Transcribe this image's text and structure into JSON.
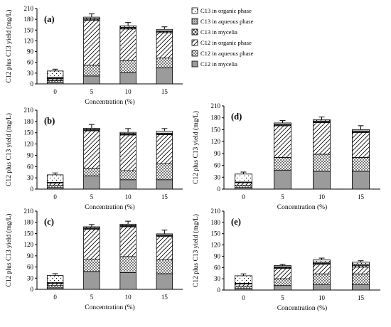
{
  "figure": {
    "legend": [
      {
        "key": "c13_organic",
        "label": "C13 in organic phase"
      },
      {
        "key": "c13_aqueous",
        "label": "C13 in aqueous phase"
      },
      {
        "key": "c13_mycelia",
        "label": "C13 in mycelia"
      },
      {
        "key": "c12_organic",
        "label": "C12 in organic phase"
      },
      {
        "key": "c12_aqueous",
        "label": "C12 in aqueous phase"
      },
      {
        "key": "c12_mycelia",
        "label": "C12 in mycelia"
      }
    ]
  },
  "chart_data": [
    {
      "type": "bar",
      "panel": "(a)",
      "xlabel": "Concentration (%)",
      "ylabel": "C12 plus C13 yield (mg/L)",
      "ylim": [
        0,
        210
      ],
      "yticks": [
        0,
        30,
        60,
        90,
        120,
        150,
        180,
        210
      ],
      "categories": [
        "0",
        "5",
        "10",
        "15"
      ],
      "stacked": true,
      "series": [
        {
          "name": "C12 in mycelia",
          "values": [
            5,
            22,
            32,
            45
          ]
        },
        {
          "name": "C12 in aqueous phase",
          "values": [
            4,
            30,
            33,
            27
          ]
        },
        {
          "name": "C12 in organic phase",
          "values": [
            5,
            125,
            88,
            71
          ]
        },
        {
          "name": "C13 in mycelia",
          "values": [
            2,
            3,
            3,
            3
          ]
        },
        {
          "name": "C13 in aqueous phase",
          "values": [
            2,
            2,
            2,
            2
          ]
        },
        {
          "name": "C13 in organic phase",
          "values": [
            18,
            4,
            4,
            4
          ]
        }
      ],
      "error": [
        5,
        9,
        9,
        7
      ]
    },
    {
      "type": "bar",
      "panel": "(b)",
      "xlabel": "Concentration (%)",
      "ylabel": "C12 plus C13 yield (mg/L)",
      "ylim": [
        0,
        210
      ],
      "yticks": [
        0,
        30,
        60,
        90,
        120,
        150,
        180,
        210
      ],
      "categories": [
        "0",
        "5",
        "10",
        "15"
      ],
      "stacked": true,
      "series": [
        {
          "name": "C12 in mycelia",
          "values": [
            4,
            35,
            25,
            25
          ]
        },
        {
          "name": "C12 in aqueous phase",
          "values": [
            6,
            20,
            24,
            42
          ]
        },
        {
          "name": "C12 in organic phase",
          "values": [
            6,
            100,
            95,
            78
          ]
        },
        {
          "name": "C13 in mycelia",
          "values": [
            1,
            2,
            2,
            2
          ]
        },
        {
          "name": "C13 in aqueous phase",
          "values": [
            1,
            2,
            2,
            2
          ]
        },
        {
          "name": "C13 in organic phase",
          "values": [
            20,
            3,
            3,
            5
          ]
        }
      ],
      "error": [
        5,
        10,
        10,
        7
      ]
    },
    {
      "type": "bar",
      "panel": "(c)",
      "xlabel": "Concentration (%)",
      "ylabel": "C12 plus C13 yield (mg/L)",
      "ylim": [
        0,
        210
      ],
      "yticks": [
        0,
        30,
        60,
        90,
        120,
        150,
        180,
        210
      ],
      "categories": [
        "0",
        "5",
        "10",
        "15"
      ],
      "stacked": true,
      "series": [
        {
          "name": "C12 in mycelia",
          "values": [
            4,
            48,
            45,
            42
          ]
        },
        {
          "name": "C12 in aqueous phase",
          "values": [
            6,
            33,
            43,
            37
          ]
        },
        {
          "name": "C12 in organic phase",
          "values": [
            6,
            80,
            80,
            63
          ]
        },
        {
          "name": "C13 in mycelia",
          "values": [
            1,
            2,
            2,
            2
          ]
        },
        {
          "name": "C13 in aqueous phase",
          "values": [
            1,
            2,
            2,
            2
          ]
        },
        {
          "name": "C13 in organic phase",
          "values": [
            19,
            3,
            3,
            3
          ]
        }
      ],
      "error": [
        5,
        6,
        8,
        10
      ]
    },
    {
      "type": "bar",
      "panel": "(d)",
      "xlabel": "Concentration (%)",
      "ylabel": "C12 plus C13 yield (mg/L)",
      "ylim": [
        0,
        210
      ],
      "yticks": [
        0,
        30,
        60,
        90,
        120,
        150,
        180,
        210
      ],
      "categories": [
        "0",
        "5",
        "10",
        "15"
      ],
      "stacked": true,
      "series": [
        {
          "name": "C12 in mycelia",
          "values": [
            4,
            48,
            45,
            45
          ]
        },
        {
          "name": "C12 in aqueous phase",
          "values": [
            6,
            32,
            43,
            35
          ]
        },
        {
          "name": "C12 in organic phase",
          "values": [
            6,
            80,
            80,
            63
          ]
        },
        {
          "name": "C13 in mycelia",
          "values": [
            1,
            2,
            2,
            2
          ]
        },
        {
          "name": "C13 in aqueous phase",
          "values": [
            1,
            2,
            2,
            2
          ]
        },
        {
          "name": "C13 in organic phase",
          "values": [
            20,
            3,
            3,
            3
          ]
        }
      ],
      "error": [
        5,
        6,
        7,
        10
      ]
    },
    {
      "type": "bar",
      "panel": "(e)",
      "xlabel": "Concentration (%)",
      "ylabel": "C12 plus C13 yield (mg/L)",
      "ylim": [
        0,
        210
      ],
      "yticks": [
        0,
        30,
        60,
        90,
        120,
        150,
        180,
        210
      ],
      "categories": [
        "0",
        "5",
        "10",
        "15"
      ],
      "stacked": true,
      "series": [
        {
          "name": "C12 in mycelia",
          "values": [
            4,
            12,
            15,
            15
          ]
        },
        {
          "name": "C12 in aqueous phase",
          "values": [
            6,
            18,
            28,
            28
          ]
        },
        {
          "name": "C12 in organic phase",
          "values": [
            6,
            28,
            25,
            18
          ]
        },
        {
          "name": "C13 in mycelia",
          "values": [
            1,
            2,
            3,
            4
          ]
        },
        {
          "name": "C13 in aqueous phase",
          "values": [
            1,
            2,
            3,
            4
          ]
        },
        {
          "name": "C13 in organic phase",
          "values": [
            20,
            3,
            6,
            5
          ]
        }
      ],
      "error": [
        5,
        3,
        5,
        4
      ]
    }
  ]
}
